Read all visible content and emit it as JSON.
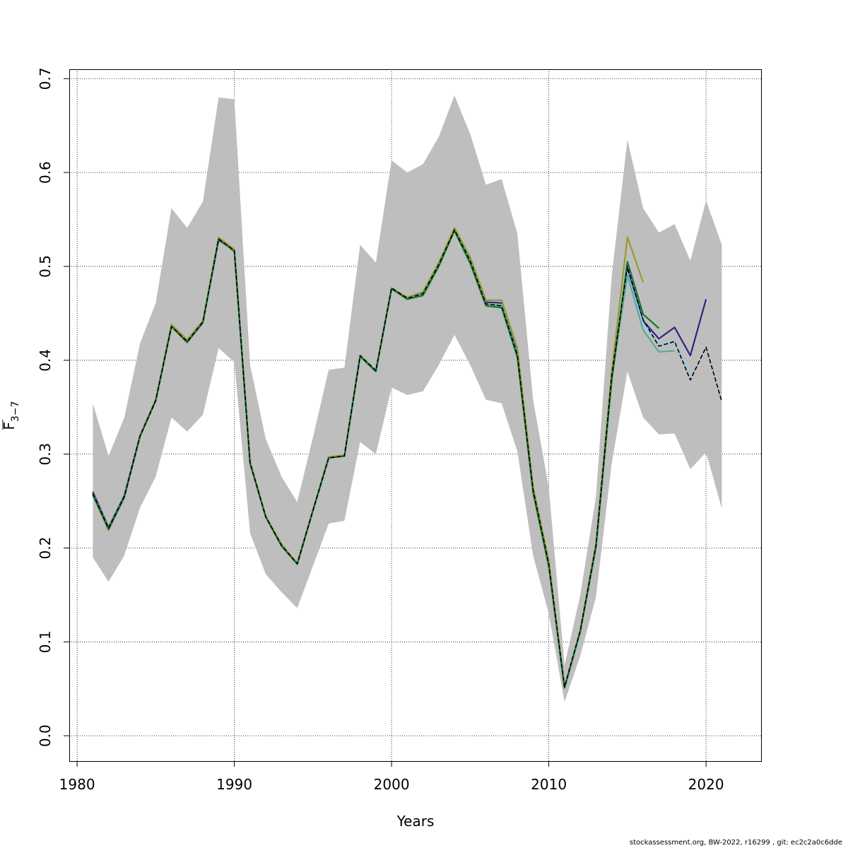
{
  "footer": "stockassessment.org, BW-2022, r16299 , git: ec2c2a0c6dde",
  "chart_data": {
    "type": "line",
    "xlabel": "Years",
    "ylabel": {
      "base": "F",
      "subscript": "3−7"
    },
    "xlim": [
      1979.5,
      2023.5
    ],
    "ylim": [
      -0.027,
      0.71
    ],
    "x_ticks": [
      1980,
      1990,
      2000,
      2010,
      2020
    ],
    "y_ticks": [
      0.0,
      0.1,
      0.2,
      0.3,
      0.4,
      0.5,
      0.6,
      0.7
    ],
    "x_tick_labels": [
      "1980",
      "1990",
      "2000",
      "2010",
      "2020"
    ],
    "y_tick_labels": [
      "0.0",
      "0.1",
      "0.2",
      "0.3",
      "0.4",
      "0.5",
      "0.6",
      "0.7"
    ],
    "grid": true,
    "band": {
      "color": "#bebebe",
      "x": [
        1981,
        1982,
        1983,
        1984,
        1985,
        1986,
        1987,
        1988,
        1989,
        1990,
        1991,
        1992,
        1993,
        1994,
        1995,
        1996,
        1997,
        1998,
        1999,
        2000,
        2001,
        2002,
        2003,
        2004,
        2005,
        2006,
        2007,
        2008,
        2009,
        2010,
        2011,
        2012,
        2013,
        2014,
        2015,
        2016,
        2017,
        2018,
        2019,
        2020,
        2021
      ],
      "upper": [
        0.354,
        0.298,
        0.339,
        0.418,
        0.461,
        0.562,
        0.541,
        0.569,
        0.68,
        0.678,
        0.395,
        0.316,
        0.276,
        0.249,
        0.318,
        0.39,
        0.392,
        0.523,
        0.504,
        0.613,
        0.6,
        0.609,
        0.638,
        0.682,
        0.641,
        0.587,
        0.593,
        0.535,
        0.358,
        0.264,
        0.075,
        0.15,
        0.255,
        0.49,
        0.635,
        0.562,
        0.536,
        0.545,
        0.506,
        0.57,
        0.523
      ],
      "lower": [
        0.19,
        0.164,
        0.192,
        0.243,
        0.276,
        0.339,
        0.324,
        0.342,
        0.413,
        0.398,
        0.216,
        0.172,
        0.153,
        0.136,
        0.181,
        0.226,
        0.229,
        0.313,
        0.3,
        0.371,
        0.363,
        0.367,
        0.395,
        0.427,
        0.395,
        0.358,
        0.354,
        0.303,
        0.192,
        0.13,
        0.036,
        0.085,
        0.148,
        0.29,
        0.388,
        0.339,
        0.321,
        0.322,
        0.284,
        0.302,
        0.242
      ]
    },
    "series": [
      {
        "color": "#2e2585",
        "x": [
          1981,
          1982,
          1983,
          1984,
          1985,
          1986,
          1987,
          1988,
          1989,
          1990,
          1991,
          1992,
          1993,
          1994,
          1995,
          1996,
          1997,
          1998,
          1999,
          2000,
          2001,
          2002,
          2003,
          2004,
          2005,
          2006,
          2007,
          2008,
          2009,
          2010,
          2011,
          2012,
          2013,
          2014,
          2015,
          2016,
          2017,
          2018,
          2019,
          2020
        ],
        "y": [
          0.26,
          0.222,
          0.256,
          0.32,
          0.358,
          0.436,
          0.419,
          0.441,
          0.528,
          0.517,
          0.291,
          0.233,
          0.203,
          0.183,
          0.24,
          0.296,
          0.298,
          0.405,
          0.389,
          0.477,
          0.466,
          0.471,
          0.502,
          0.539,
          0.506,
          0.462,
          0.461,
          0.407,
          0.262,
          0.184,
          0.052,
          0.112,
          0.203,
          0.385,
          0.497,
          0.442,
          0.423,
          0.435,
          0.405,
          0.465
        ]
      },
      {
        "color": "#94cbec",
        "x": [
          1981,
          1982,
          1983,
          1984,
          1985,
          1986,
          1987,
          1988,
          1989,
          1990,
          1991,
          1992,
          1993,
          1994,
          1995,
          1996,
          1997,
          1998,
          1999,
          2000,
          2001,
          2002,
          2003,
          2004,
          2005,
          2006,
          2007,
          2008,
          2009,
          2010,
          2011,
          2012,
          2013,
          2014,
          2015,
          2016,
          2017,
          2018,
          2019
        ],
        "y": [
          0.258,
          0.221,
          0.255,
          0.319,
          0.357,
          0.436,
          0.42,
          0.441,
          0.529,
          0.517,
          0.291,
          0.233,
          0.203,
          0.183,
          0.24,
          0.296,
          0.298,
          0.405,
          0.389,
          0.477,
          0.466,
          0.471,
          0.502,
          0.539,
          0.506,
          0.46,
          0.459,
          0.406,
          0.262,
          0.183,
          0.052,
          0.112,
          0.203,
          0.384,
          0.493,
          0.438,
          0.417,
          0.42,
          0.385
        ]
      },
      {
        "color": "#5da899",
        "x": [
          1981,
          1982,
          1983,
          1984,
          1985,
          1986,
          1987,
          1988,
          1989,
          1990,
          1991,
          1992,
          1993,
          1994,
          1995,
          1996,
          1997,
          1998,
          1999,
          2000,
          2001,
          2002,
          2003,
          2004,
          2005,
          2006,
          2007,
          2008,
          2009,
          2010,
          2011,
          2012,
          2013,
          2014,
          2015,
          2016,
          2017,
          2018
        ],
        "y": [
          0.258,
          0.221,
          0.255,
          0.319,
          0.357,
          0.436,
          0.42,
          0.441,
          0.529,
          0.517,
          0.291,
          0.233,
          0.203,
          0.183,
          0.24,
          0.296,
          0.298,
          0.405,
          0.389,
          0.477,
          0.466,
          0.471,
          0.502,
          0.539,
          0.506,
          0.46,
          0.458,
          0.406,
          0.261,
          0.182,
          0.051,
          0.111,
          0.202,
          0.38,
          0.491,
          0.432,
          0.409,
          0.41
        ]
      },
      {
        "color": "#999933",
        "x": [
          1981,
          1982,
          1983,
          1984,
          1985,
          1986,
          1987,
          1988,
          1989,
          1990,
          1991,
          1992,
          1993,
          1994,
          1995,
          1996,
          1997,
          1998,
          1999,
          2000,
          2001,
          2002,
          2003,
          2004,
          2005,
          2006,
          2007,
          2008,
          2009,
          2010,
          2011,
          2012,
          2013,
          2014,
          2015,
          2016
        ],
        "y": [
          0.256,
          0.219,
          0.254,
          0.32,
          0.358,
          0.438,
          0.422,
          0.442,
          0.531,
          0.518,
          0.292,
          0.234,
          0.204,
          0.184,
          0.241,
          0.297,
          0.299,
          0.405,
          0.389,
          0.477,
          0.467,
          0.473,
          0.504,
          0.541,
          0.51,
          0.464,
          0.464,
          0.413,
          0.265,
          0.186,
          0.052,
          0.112,
          0.205,
          0.388,
          0.531,
          0.483
        ]
      },
      {
        "color": "#117733",
        "x": [
          1981,
          1982,
          1983,
          1984,
          1985,
          1986,
          1987,
          1988,
          1989,
          1990,
          1991,
          1992,
          1993,
          1994,
          1995,
          1996,
          1997,
          1998,
          1999,
          2000,
          2001,
          2002,
          2003,
          2004,
          2005,
          2006,
          2007,
          2008,
          2009,
          2010,
          2011,
          2012,
          2013,
          2014,
          2015,
          2016,
          2017
        ],
        "y": [
          0.257,
          0.22,
          0.254,
          0.319,
          0.357,
          0.436,
          0.419,
          0.44,
          0.529,
          0.516,
          0.29,
          0.233,
          0.202,
          0.183,
          0.24,
          0.296,
          0.298,
          0.404,
          0.388,
          0.476,
          0.465,
          0.469,
          0.5,
          0.538,
          0.503,
          0.458,
          0.456,
          0.403,
          0.259,
          0.18,
          0.051,
          0.111,
          0.201,
          0.378,
          0.505,
          0.449,
          0.434
        ]
      },
      {
        "color": "#000000",
        "x": [
          1981,
          1982,
          1983,
          1984,
          1985,
          1986,
          1987,
          1988,
          1989,
          1990,
          1991,
          1992,
          1993,
          1994,
          1995,
          1996,
          1997,
          1998,
          1999,
          2000,
          2001,
          2002,
          2003,
          2004,
          2005,
          2006,
          2007,
          2008,
          2009,
          2010,
          2011,
          2012,
          2013,
          2014,
          2015,
          2016,
          2017,
          2018,
          2019,
          2020,
          2021
        ],
        "y": [
          0.258,
          0.221,
          0.255,
          0.319,
          0.357,
          0.436,
          0.42,
          0.441,
          0.529,
          0.517,
          0.291,
          0.233,
          0.203,
          0.183,
          0.24,
          0.296,
          0.298,
          0.405,
          0.389,
          0.477,
          0.466,
          0.471,
          0.502,
          0.539,
          0.506,
          0.46,
          0.458,
          0.406,
          0.262,
          0.183,
          0.052,
          0.112,
          0.203,
          0.384,
          0.5,
          0.443,
          0.415,
          0.42,
          0.379,
          0.414,
          0.356
        ]
      }
    ]
  }
}
